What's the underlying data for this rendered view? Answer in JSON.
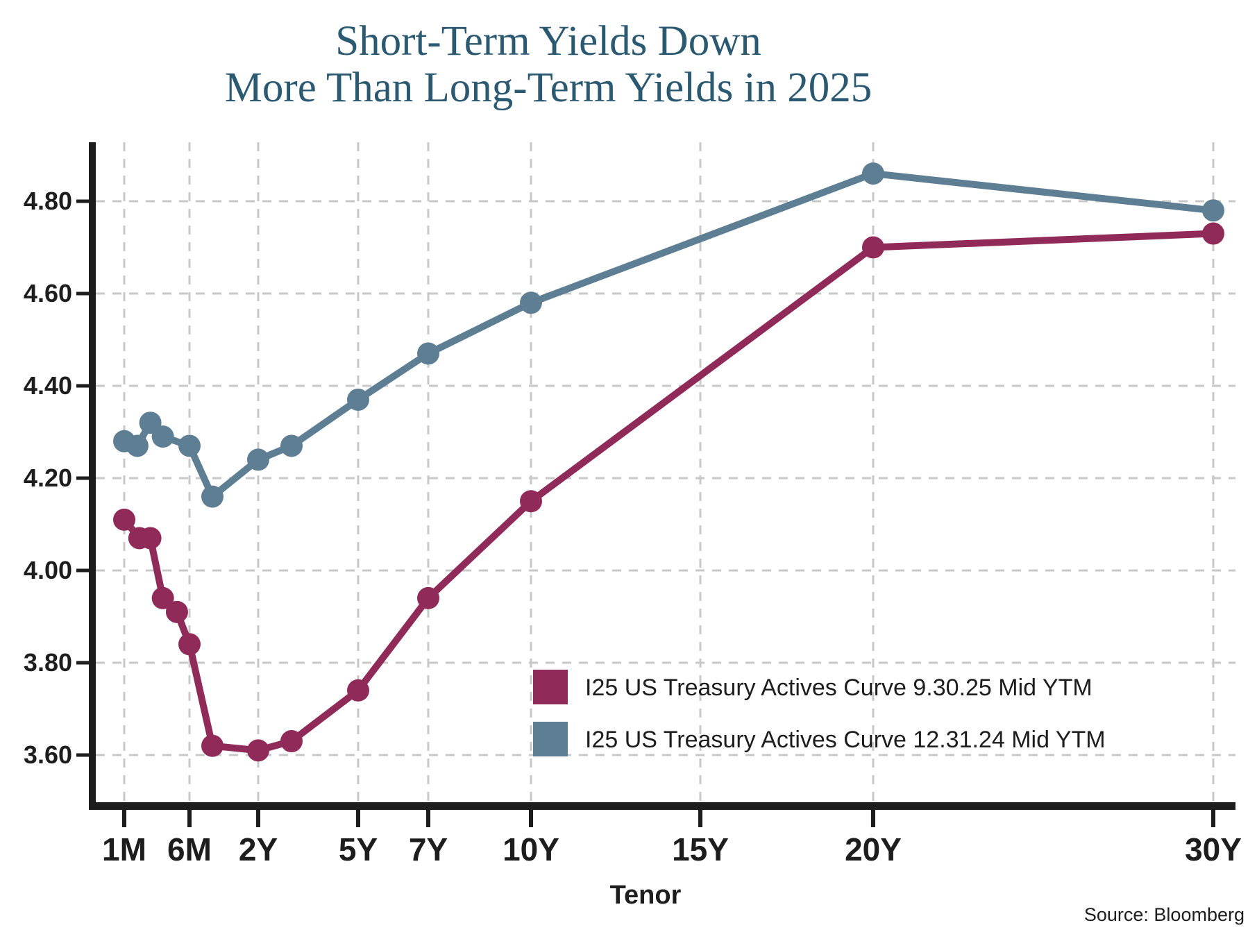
{
  "title": {
    "line1": "Short-Term Yields Down",
    "line2": "More Than Long-Term Yields in 2025"
  },
  "x_axis": {
    "label": "Tenor",
    "ticks": [
      "1M",
      "6M",
      "2Y",
      "5Y",
      "7Y",
      "10Y",
      "15Y",
      "20Y",
      "30Y"
    ]
  },
  "y_axis": {
    "ticks": [
      "4.80",
      "4.60",
      "4.40",
      "4.20",
      "4.00",
      "3.80",
      "3.60"
    ]
  },
  "source": "Source: Bloomberg",
  "colors": {
    "series_2025": "#8f2a59",
    "series_2024": "#5e7e93",
    "title": "#2b5971",
    "grid": "#c8c8c8",
    "axis": "#1d1d1d",
    "text": "#1d1d1d"
  },
  "chart_data": {
    "type": "line",
    "xlabel": "Tenor",
    "ylabel": "",
    "ylim": [
      3.48,
      4.93
    ],
    "x_tick_labels": [
      "1M",
      "6M",
      "2Y",
      "5Y",
      "7Y",
      "10Y",
      "15Y",
      "20Y",
      "30Y"
    ],
    "x_tick_years": [
      0.0833,
      0.5,
      2,
      5,
      7,
      10,
      15,
      20,
      30
    ],
    "y_tick_values": [
      4.8,
      4.6,
      4.4,
      4.2,
      4.0,
      3.8,
      3.6
    ],
    "grid": true,
    "legend_position": "lower right",
    "series": [
      {
        "name": "I25 US Treasury Actives Curve 9.30.25 Mid YTM",
        "color_key": "series_2025",
        "points": [
          {
            "x": 0.083,
            "y": 4.11
          },
          {
            "x": 0.18,
            "y": 4.07
          },
          {
            "x": 0.25,
            "y": 4.07
          },
          {
            "x": 0.33,
            "y": 3.94
          },
          {
            "x": 0.42,
            "y": 3.91
          },
          {
            "x": 0.5,
            "y": 3.84
          },
          {
            "x": 1,
            "y": 3.62
          },
          {
            "x": 2,
            "y": 3.61
          },
          {
            "x": 3,
            "y": 3.63
          },
          {
            "x": 5,
            "y": 3.74
          },
          {
            "x": 7,
            "y": 3.94
          },
          {
            "x": 10,
            "y": 4.15
          },
          {
            "x": 20,
            "y": 4.7
          },
          {
            "x": 30,
            "y": 4.73
          }
        ]
      },
      {
        "name": "I25 US Treasury Actives Curve 12.31.24 Mid YTM",
        "color_key": "series_2024",
        "points": [
          {
            "x": 0.083,
            "y": 4.28
          },
          {
            "x": 0.167,
            "y": 4.27
          },
          {
            "x": 0.25,
            "y": 4.32
          },
          {
            "x": 0.33,
            "y": 4.29
          },
          {
            "x": 0.5,
            "y": 4.27
          },
          {
            "x": 1,
            "y": 4.16
          },
          {
            "x": 2,
            "y": 4.24
          },
          {
            "x": 3,
            "y": 4.27
          },
          {
            "x": 5,
            "y": 4.37
          },
          {
            "x": 7,
            "y": 4.47
          },
          {
            "x": 10,
            "y": 4.58
          },
          {
            "x": 20,
            "y": 4.86
          },
          {
            "x": 30,
            "y": 4.78
          }
        ]
      }
    ]
  }
}
